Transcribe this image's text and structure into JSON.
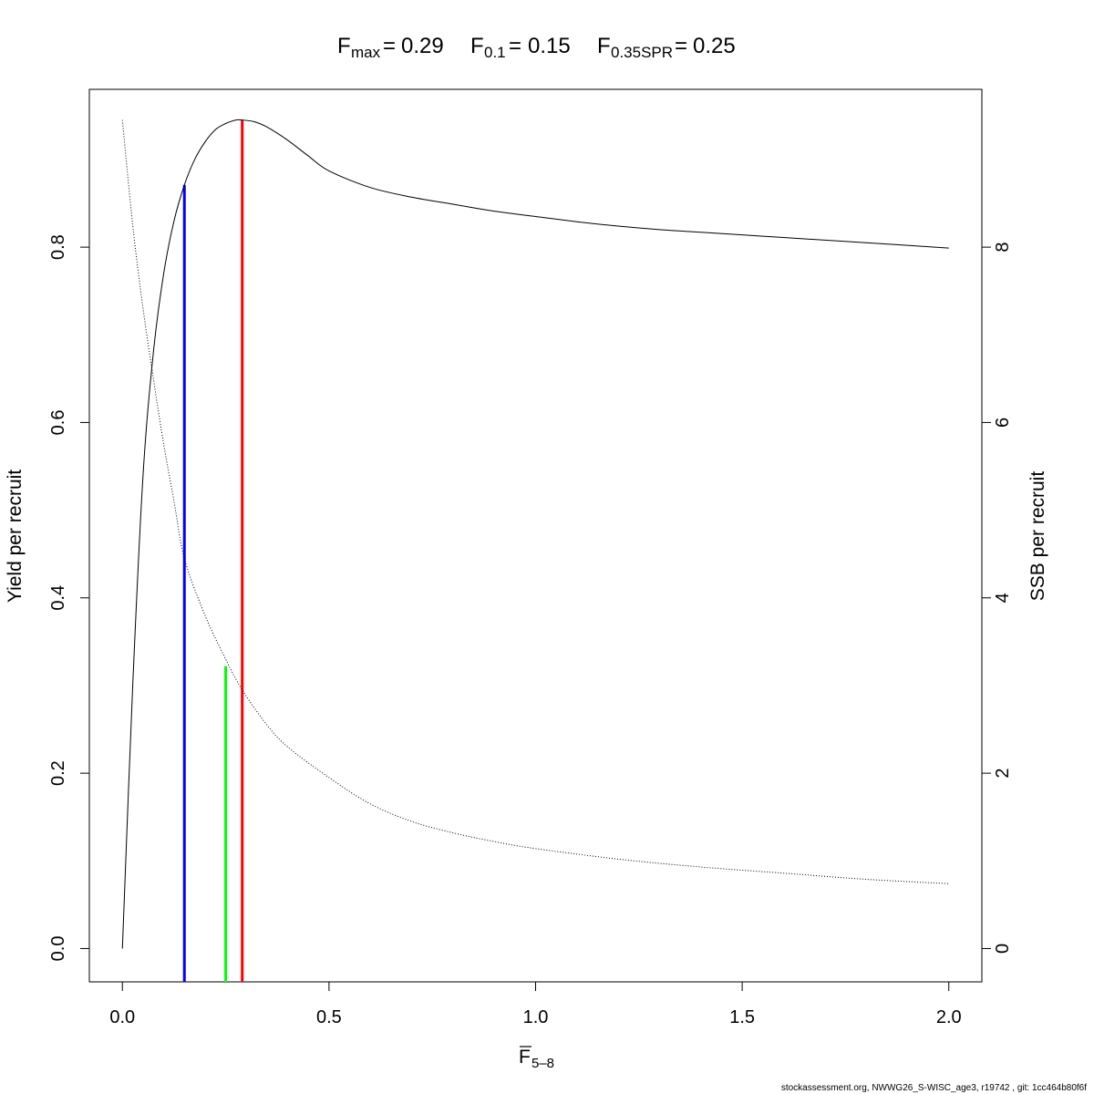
{
  "chart_data": {
    "type": "line",
    "title": {
      "fmax_sub": "max",
      "fmax_value": "0.29",
      "f01_sub": "0.1",
      "f01_value": "0.15",
      "fspr_sub": "0.35SPR",
      "fspr_value": "0.25",
      "symbol": "F",
      "eq": "="
    },
    "xlabel": {
      "symbol": "F",
      "sub": "5–8"
    },
    "ylabel_left": "Yield per recruit",
    "ylabel_right": "SSB per recruit",
    "xlim": [
      -0.08,
      2.08
    ],
    "ylim_left": [
      -0.038,
      0.98
    ],
    "ylim_right": [
      -0.38,
      9.8
    ],
    "x_ticks": [
      0.0,
      0.5,
      1.0,
      1.5,
      2.0
    ],
    "x_tick_labels": [
      "0.0",
      "0.5",
      "1.0",
      "1.5",
      "2.0"
    ],
    "y_left_ticks": [
      0.0,
      0.2,
      0.4,
      0.6,
      0.8
    ],
    "y_left_tick_labels": [
      "0.0",
      "0.2",
      "0.4",
      "0.6",
      "0.8"
    ],
    "y_right_ticks": [
      0,
      2,
      4,
      6,
      8
    ],
    "y_right_tick_labels": [
      "0",
      "2",
      "4",
      "6",
      "8"
    ],
    "series": [
      {
        "axis": "left",
        "line": "solid",
        "x": [
          0.0,
          0.025,
          0.05,
          0.075,
          0.1,
          0.125,
          0.15,
          0.175,
          0.2,
          0.225,
          0.25,
          0.275,
          0.29,
          0.32,
          0.35,
          0.4,
          0.45,
          0.5,
          0.6,
          0.7,
          0.8,
          0.9,
          1.0,
          1.1,
          1.2,
          1.3,
          1.4,
          1.5,
          1.6,
          1.7,
          1.8,
          1.9,
          2.0
        ],
        "y": [
          0.0,
          0.3,
          0.54,
          0.68,
          0.77,
          0.83,
          0.871,
          0.9,
          0.92,
          0.934,
          0.941,
          0.945,
          0.945,
          0.943,
          0.937,
          0.922,
          0.904,
          0.887,
          0.868,
          0.857,
          0.849,
          0.841,
          0.835,
          0.829,
          0.824,
          0.82,
          0.817,
          0.814,
          0.811,
          0.808,
          0.805,
          0.802,
          0.799
        ]
      },
      {
        "axis": "right",
        "line": "dotted",
        "x": [
          0.0,
          0.025,
          0.05,
          0.075,
          0.1,
          0.125,
          0.15,
          0.2,
          0.25,
          0.29,
          0.35,
          0.4,
          0.5,
          0.6,
          0.7,
          0.8,
          0.9,
          1.0,
          1.2,
          1.4,
          1.6,
          1.8,
          2.0
        ],
        "y": [
          9.45,
          8.25,
          7.3,
          6.5,
          5.75,
          5.1,
          4.45,
          3.8,
          3.3,
          2.95,
          2.55,
          2.3,
          1.95,
          1.65,
          1.45,
          1.32,
          1.22,
          1.14,
          1.02,
          0.93,
          0.86,
          0.79,
          0.74
        ]
      }
    ],
    "reference_lines": [
      {
        "name": "F0.1",
        "x": 0.15,
        "y_top": 0.871,
        "color": "#0000ff"
      },
      {
        "name": "F0.35SPR",
        "x": 0.25,
        "y_top": 0.322,
        "color": "#00ff00"
      },
      {
        "name": "Fmax",
        "x": 0.29,
        "y_top": 0.945,
        "color": "#ff0000"
      }
    ],
    "footer": "stockassessment.org, NWWG26_S-WISC_age3, r19742 , git: 1cc464b80f6f"
  }
}
